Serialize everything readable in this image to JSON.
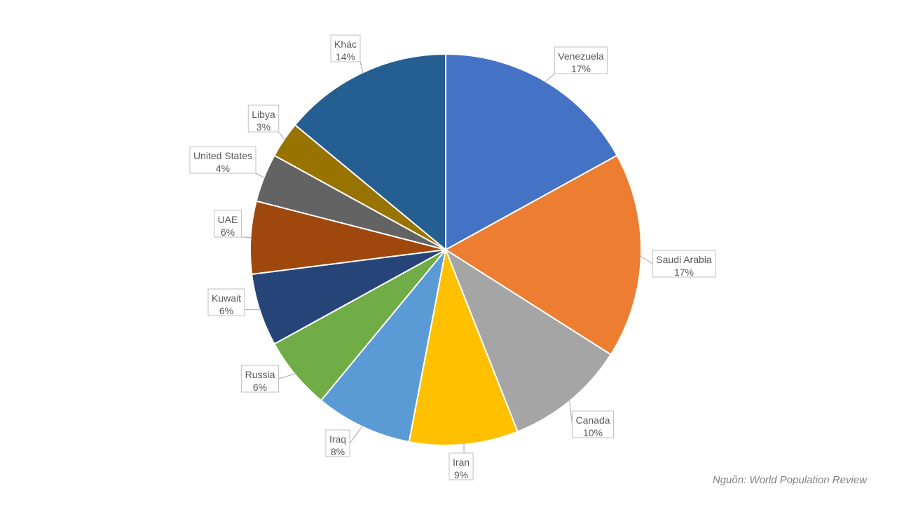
{
  "chart_data": {
    "type": "pie",
    "title": "",
    "categories": [
      "Venezuela",
      "Saudi Arabia",
      "Canada",
      "Iran",
      "Iraq",
      "Russia",
      "Kuwait",
      "UAE",
      "United States",
      "Libya",
      "Khác"
    ],
    "values": [
      17,
      17,
      10,
      9,
      8,
      6,
      6,
      6,
      4,
      3,
      14
    ],
    "value_labels": [
      "17%",
      "17%",
      "10%",
      "9%",
      "8%",
      "6%",
      "6%",
      "6%",
      "4%",
      "3%",
      "14%"
    ],
    "colors": [
      "#4472c4",
      "#ed7d31",
      "#a5a5a5",
      "#ffc000",
      "#5b9bd5",
      "#70ad47",
      "#264478",
      "#9e480e",
      "#636363",
      "#997300",
      "#255e91"
    ],
    "start_angle": "12 o'clock",
    "direction": "clockwise",
    "legend": "none",
    "data_labels": "outside with callout boxes"
  },
  "source_note": "Nguồn: World Population Review"
}
